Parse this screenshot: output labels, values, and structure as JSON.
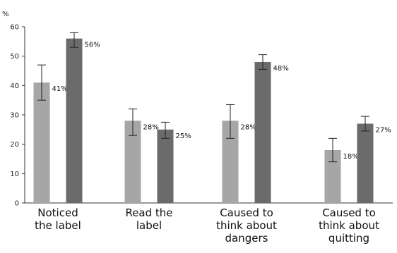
{
  "chart_data": {
    "type": "bar",
    "ylabel": "%",
    "ylim": [
      0,
      60
    ],
    "yticks": [
      0,
      10,
      20,
      30,
      40,
      50,
      60
    ],
    "categories": [
      [
        "Noticed",
        "the label"
      ],
      [
        "Read the",
        "label"
      ],
      [
        "Caused to",
        "think about",
        "dangers"
      ],
      [
        "Caused to",
        "think about",
        "quitting"
      ]
    ],
    "series": [
      {
        "color": "#a6a6a6",
        "values": [
          41,
          28,
          28,
          18
        ],
        "labels": [
          "41%",
          "28%",
          "28%",
          "18%"
        ],
        "error_low": [
          35,
          23,
          22,
          14
        ],
        "error_high": [
          47,
          32,
          33.5,
          22
        ]
      },
      {
        "color": "#6b6b6b",
        "values": [
          56,
          25,
          48,
          27
        ],
        "labels": [
          "56%",
          "25%",
          "48%",
          "27%"
        ],
        "error_low": [
          53,
          22,
          45.5,
          24.5
        ],
        "error_high": [
          58,
          27.5,
          50.5,
          29.5
        ]
      }
    ],
    "grid": false,
    "legend": "none"
  }
}
